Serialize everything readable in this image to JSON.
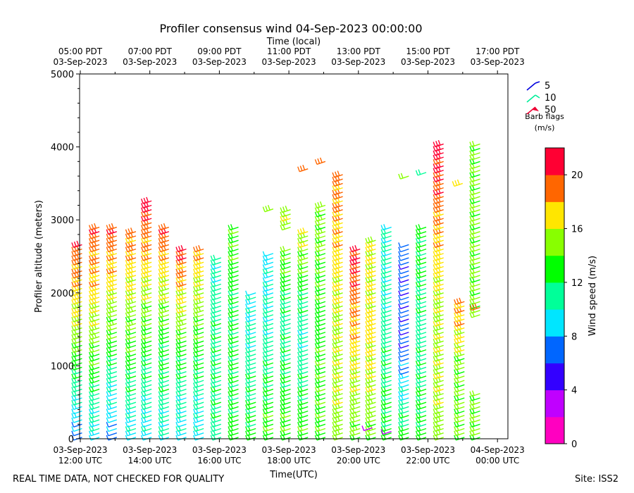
{
  "chart_data": {
    "type": "wind-barb-profile",
    "title": "Profiler consensus wind 04-Sep-2023 00:00:00",
    "top_axis_label": "Time (local)",
    "xlabel": "Time(UTC)",
    "ylabel": "Profiler altitude (meters)",
    "ylim": [
      0,
      5000
    ],
    "y_ticks": [
      0,
      1000,
      2000,
      3000,
      4000,
      5000
    ],
    "x_range_hours_utc": [
      11.98,
      24.3
    ],
    "bottom_ticks": [
      {
        "hour": 12,
        "line1": "03-Sep-2023",
        "line2": "12:00 UTC"
      },
      {
        "hour": 14,
        "line1": "03-Sep-2023",
        "line2": "14:00 UTC"
      },
      {
        "hour": 16,
        "line1": "03-Sep-2023",
        "line2": "16:00 UTC"
      },
      {
        "hour": 18,
        "line1": "03-Sep-2023",
        "line2": "18:00 UTC"
      },
      {
        "hour": 20,
        "line1": "03-Sep-2023",
        "line2": "20:00 UTC"
      },
      {
        "hour": 22,
        "line1": "03-Sep-2023",
        "line2": "22:00 UTC"
      },
      {
        "hour": 24,
        "line1": "04-Sep-2023",
        "line2": "00:00 UTC"
      }
    ],
    "top_ticks": [
      {
        "hour": 12,
        "line1": "05:00 PDT",
        "line2": "03-Sep-2023"
      },
      {
        "hour": 14,
        "line1": "07:00 PDT",
        "line2": "03-Sep-2023"
      },
      {
        "hour": 16,
        "line1": "09:00 PDT",
        "line2": "03-Sep-2023"
      },
      {
        "hour": 18,
        "line1": "11:00 PDT",
        "line2": "03-Sep-2023"
      },
      {
        "hour": 20,
        "line1": "13:00 PDT",
        "line2": "03-Sep-2023"
      },
      {
        "hour": 22,
        "line1": "15:00 PDT",
        "line2": "03-Sep-2023"
      },
      {
        "hour": 24,
        "line1": "17:00 PDT",
        "line2": "03-Sep-2023"
      }
    ],
    "barb_legend": {
      "title_line1": "Barb flags",
      "title_line2": "(m/s)",
      "entries": [
        {
          "label": "5",
          "color": "#0000dd"
        },
        {
          "label": "10",
          "color": "#00ee99"
        },
        {
          "label": "50",
          "color": "#ee0033"
        }
      ]
    },
    "colorbar": {
      "label": "Wind speed (m/s)",
      "min": 0,
      "max": 22,
      "tick_values": [
        0,
        4,
        8,
        12,
        16,
        20
      ],
      "tick_labels": [
        "0",
        "4",
        "8",
        "12",
        "16",
        "20"
      ],
      "colors": [
        "#ff00c0",
        "#c000ff",
        "#3300ff",
        "#0066ff",
        "#00e6ff",
        "#00ff99",
        "#00ff00",
        "#88ff00",
        "#ffe600",
        "#ff6600",
        "#ff0033"
      ]
    },
    "profiles": [
      {
        "t": 12.05,
        "top": 2700,
        "s_low": 7,
        "s_mid": 15,
        "s_high": 20,
        "gaps": []
      },
      {
        "t": 12.55,
        "top": 2900,
        "s_low": 9,
        "s_mid": 15,
        "s_high": 20,
        "gaps": []
      },
      {
        "t": 13.05,
        "top": 2950,
        "s_low": 7,
        "s_mid": 14,
        "s_high": 20,
        "gaps": []
      },
      {
        "t": 13.6,
        "top": 2850,
        "s_low": 9,
        "s_mid": 14,
        "s_high": 19,
        "gaps": []
      },
      {
        "t": 14.05,
        "top": 3300,
        "s_low": 9,
        "s_mid": 14,
        "s_high": 21,
        "gaps": []
      },
      {
        "t": 14.55,
        "top": 2900,
        "s_low": 10,
        "s_mid": 13,
        "s_high": 20,
        "gaps": []
      },
      {
        "t": 15.05,
        "top": 2600,
        "s_low": 9,
        "s_mid": 13,
        "s_high": 20,
        "gaps": []
      },
      {
        "t": 15.55,
        "top": 2600,
        "s_low": 9,
        "s_mid": 13,
        "s_high": 18,
        "gaps": []
      },
      {
        "t": 16.05,
        "top": 2500,
        "s_low": 11,
        "s_mid": 12,
        "s_high": 10,
        "gaps": []
      },
      {
        "t": 16.55,
        "top": 2950,
        "s_low": 13,
        "s_mid": 12,
        "s_high": 14,
        "gaps": []
      },
      {
        "t": 17.05,
        "top": 2050,
        "s_low": 13,
        "s_mid": 11,
        "s_high": 9,
        "gaps": []
      },
      {
        "t": 17.55,
        "top": 2550,
        "s_low": 14,
        "s_mid": 11,
        "s_high": 9,
        "gaps": []
      },
      {
        "t": 18.05,
        "top": 3150,
        "s_low": 14,
        "s_mid": 11,
        "s_high": 16,
        "gaps": [
          [
            2650,
            2850
          ]
        ]
      },
      {
        "t": 18.55,
        "top": 2850,
        "s_low": 14,
        "s_mid": 10,
        "s_high": 16,
        "gaps": []
      },
      {
        "t": 19.05,
        "top": 3250,
        "s_low": 14,
        "s_mid": 13,
        "s_high": 15,
        "gaps": []
      },
      {
        "t": 19.55,
        "top": 3650,
        "s_low": 15,
        "s_mid": 16,
        "s_high": 19,
        "gaps": []
      },
      {
        "t": 20.05,
        "top": 2650,
        "s_low": 14,
        "s_mid": 17,
        "s_high": 21,
        "gaps": []
      },
      {
        "t": 20.5,
        "top": 2750,
        "s_low": 14,
        "s_mid": 17,
        "s_high": 16,
        "gaps": []
      },
      {
        "t": 20.95,
        "top": 2900,
        "s_low": 13,
        "s_mid": 11,
        "s_high": 10,
        "gaps": []
      },
      {
        "t": 21.45,
        "top": 2700,
        "s_low": 13,
        "s_mid": 6,
        "s_high": 7,
        "gaps": []
      },
      {
        "t": 21.95,
        "top": 2950,
        "s_low": 13,
        "s_mid": 11,
        "s_high": 13,
        "gaps": []
      },
      {
        "t": 22.45,
        "top": 4050,
        "s_low": 15,
        "s_mid": 16,
        "s_high": 21,
        "gaps": []
      },
      {
        "t": 23.05,
        "top": 1900,
        "s_low": 14,
        "s_mid": 14,
        "s_high": 19,
        "gaps": []
      },
      {
        "t": 23.5,
        "top": 4050,
        "s_low": 14,
        "s_mid": 14,
        "s_high": 14,
        "gaps": [
          [
            650,
            1700
          ]
        ]
      }
    ],
    "isolated_barbs": [
      {
        "t": 17.55,
        "z": 3150,
        "speed": 15
      },
      {
        "t": 18.55,
        "z": 3700,
        "speed": 19
      },
      {
        "t": 19.05,
        "z": 3800,
        "speed": 19
      },
      {
        "t": 21.45,
        "z": 3600,
        "speed": 14
      },
      {
        "t": 21.95,
        "z": 3650,
        "speed": 10
      },
      {
        "t": 23.0,
        "z": 3500,
        "speed": 16
      },
      {
        "t": 23.5,
        "z": 1800,
        "speed": 19
      },
      {
        "t": 20.4,
        "z": 150,
        "speed": 2
      },
      {
        "t": 20.95,
        "z": 100,
        "speed": 2
      }
    ]
  },
  "footer": {
    "left": "REAL TIME DATA, NOT CHECKED FOR QUALITY",
    "right": "Site: ISS2"
  }
}
